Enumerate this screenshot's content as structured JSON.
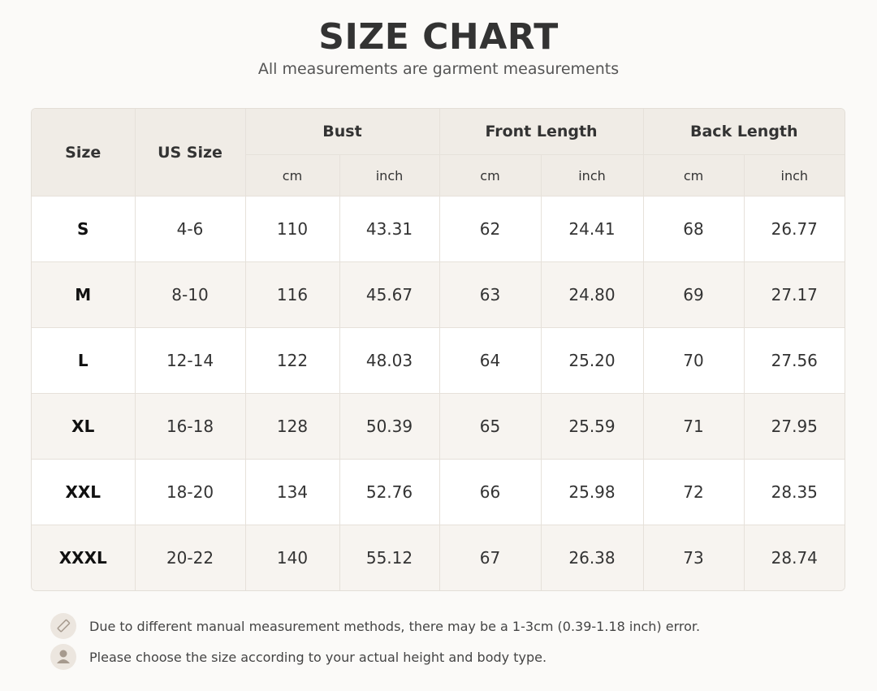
{
  "header": {
    "title": "SIZE CHART",
    "subtitle": "All measurements are garment measurements"
  },
  "table": {
    "columns": [
      "Size",
      "US Size"
    ],
    "groups": [
      {
        "label": "Bust",
        "units": [
          "cm",
          "inch"
        ]
      },
      {
        "label": "Front Length",
        "units": [
          "cm",
          "inch"
        ]
      },
      {
        "label": "Back Length",
        "units": [
          "cm",
          "inch"
        ]
      }
    ],
    "rows": [
      [
        "S",
        "4-6",
        "110",
        "43.31",
        "62",
        "24.41",
        "68",
        "26.77"
      ],
      [
        "M",
        "8-10",
        "116",
        "45.67",
        "63",
        "24.80",
        "69",
        "27.17"
      ],
      [
        "L",
        "12-14",
        "122",
        "48.03",
        "64",
        "25.20",
        "70",
        "27.56"
      ],
      [
        "XL",
        "16-18",
        "128",
        "50.39",
        "65",
        "25.59",
        "71",
        "27.95"
      ],
      [
        "XXL",
        "18-20",
        "134",
        "52.76",
        "66",
        "25.98",
        "72",
        "28.35"
      ],
      [
        "XXXL",
        "20-22",
        "140",
        "55.12",
        "67",
        "26.38",
        "73",
        "28.74"
      ]
    ]
  },
  "notes": [
    "Due to different manual measurement methods, there may be a 1-3cm (0.39-1.18 inch) error.",
    "Please choose the size according to your actual height and body type."
  ]
}
